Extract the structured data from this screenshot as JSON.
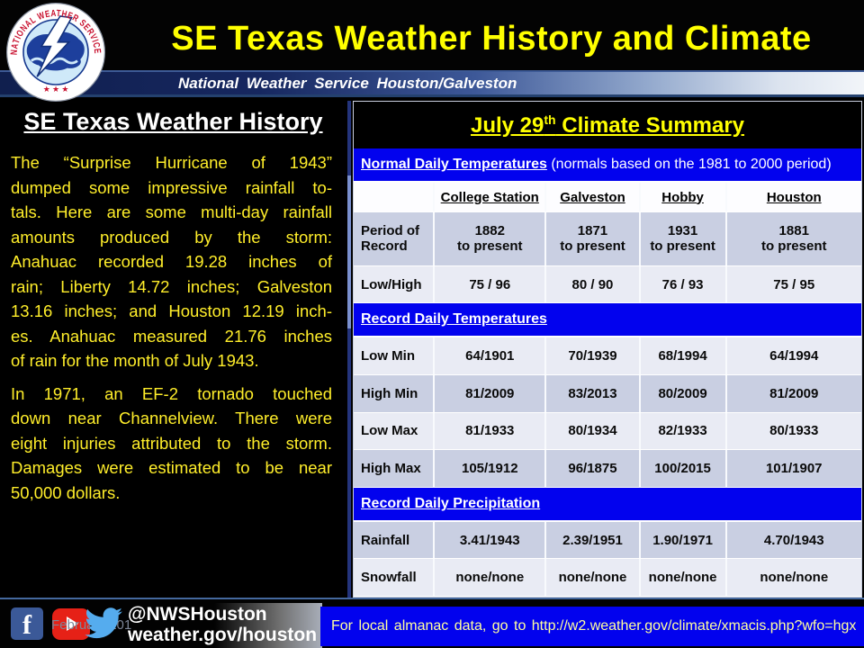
{
  "colors": {
    "title_yellow": "#ffff00",
    "body_yellow": "#ffee2a",
    "section_blue": "#0202ee",
    "row_dark": "#c9cfe2",
    "row_light": "#e9ebf4",
    "almanac_text": "#ffff9e",
    "facebook_blue": "#3b5998",
    "youtube_red": "#e62117",
    "twitter_blue": "#55acee"
  },
  "header": {
    "title": "SE Texas Weather History and Climate",
    "subtitle": "National Weather Service Houston/Galveston"
  },
  "logo": {
    "ring_text": "NATIONAL WEATHER SERVICE",
    "stars": "★ ★ ★"
  },
  "history": {
    "heading": "SE Texas Weather History",
    "paragraphs": [
      {
        "lines": [
          "The “Surprise Hurricane of 1943”",
          "dumped some impressive rainfall to-",
          "tals.  Here are some multi-day rainfall",
          "amounts produced by the storm:",
          "Anahuac recorded 19.28 inches of",
          "rain; Liberty 14.72 inches; Galveston",
          "13.16 inches; and Houston 12.19 inch-",
          "es.  Anahuac measured 21.76 inches",
          "of rain for the month of July 1943."
        ]
      },
      {
        "lines": [
          "In 1971, an EF-2 tornado touched",
          "down near Channelview.  There were",
          "eight injuries attributed to the storm.",
          "Damages were estimated to be near",
          "50,000 dollars."
        ]
      }
    ]
  },
  "climate": {
    "title_prefix": "July 29",
    "title_sup": "th",
    "title_suffix": " Climate Summary",
    "rows": [
      {
        "type": "section",
        "label": "Normal Daily Temperatures",
        "note": " (normals based on the 1981 to 2000 period)"
      },
      {
        "type": "colheads",
        "cells": [
          "",
          "College Station",
          "Galveston",
          "Hobby",
          "Houston"
        ]
      },
      {
        "type": "data",
        "shade": "dark",
        "tall": true,
        "label": "Period of\nRecord",
        "cells": [
          "1882\nto present",
          "1871\nto present",
          "1931\nto present",
          "1881\nto present"
        ]
      },
      {
        "type": "data",
        "shade": "light",
        "label": "Low/High",
        "cells": [
          "75 / 96",
          "80 / 90",
          "76 / 93",
          "75 / 95"
        ]
      },
      {
        "type": "section",
        "label": "Record Daily Temperatures",
        "note": ""
      },
      {
        "type": "data",
        "shade": "light",
        "label": "Low Min",
        "cells": [
          "64/1901",
          "70/1939",
          "68/1994",
          "64/1994"
        ]
      },
      {
        "type": "data",
        "shade": "dark",
        "label": "High Min",
        "cells": [
          "81/2009",
          "83/2013",
          "80/2009",
          "81/2009"
        ]
      },
      {
        "type": "data",
        "shade": "light",
        "label": "Low Max",
        "cells": [
          "81/1933",
          "80/1934",
          "82/1933",
          "80/1933"
        ]
      },
      {
        "type": "data",
        "shade": "dark",
        "label": "High Max",
        "cells": [
          "105/1912",
          "96/1875",
          "100/2015",
          "101/1907"
        ]
      },
      {
        "type": "section",
        "label": "Record Daily Precipitation",
        "note": ""
      },
      {
        "type": "data",
        "shade": "dark",
        "label": "Rainfall",
        "cells": [
          "3.41/1943",
          "2.39/1951",
          "1.90/1971",
          "4.70/1943"
        ]
      },
      {
        "type": "data",
        "shade": "light",
        "label": "Snowfall",
        "cells": [
          "none/none",
          "none/none",
          "none/none",
          "none/none"
        ]
      }
    ]
  },
  "footer": {
    "date": "February 201",
    "facebook_glyph": "f",
    "handle": "@NWSHouston",
    "website": "weather.gov/houston",
    "almanac": "For local almanac data, go to http://w2.weather.gov/climate/xmacis.php?wfo=hgx"
  }
}
